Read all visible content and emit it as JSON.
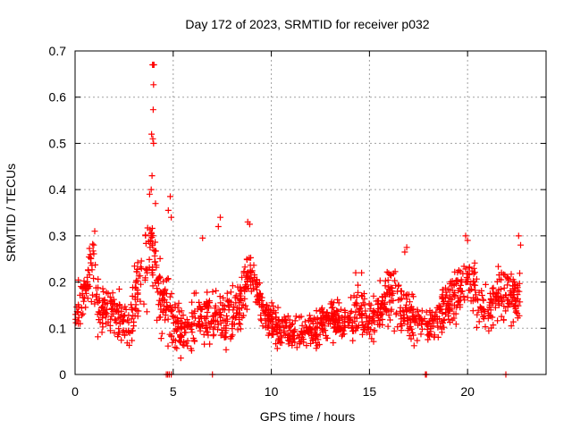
{
  "chart_data": {
    "type": "scatter",
    "title": "Day 172 of 2023, SRMTID for receiver p032",
    "xlabel": "GPS time / hours",
    "ylabel": "SRMTID / TECUs",
    "xlim": [
      0,
      24
    ],
    "ylim": [
      0,
      0.7
    ],
    "xticks": [
      0,
      5,
      10,
      15,
      20
    ],
    "yticks": [
      0,
      0.1,
      0.2,
      0.3,
      0.4,
      0.5,
      0.6,
      0.7
    ],
    "xtick_labels": [
      "0",
      "5",
      "10",
      "15",
      "20"
    ],
    "ytick_labels": [
      "0",
      "0.1",
      "0.2",
      "0.3",
      "0.4",
      "0.5",
      "0.6",
      "0.7"
    ],
    "grid": true,
    "marker": "+",
    "color": "#ff0000",
    "series": [
      {
        "name": "SRMTID",
        "profile": [
          [
            0.0,
            0.13,
            0.05
          ],
          [
            0.5,
            0.17,
            0.06
          ],
          [
            0.9,
            0.22,
            0.07
          ],
          [
            1.2,
            0.14,
            0.05
          ],
          [
            1.8,
            0.15,
            0.05
          ],
          [
            2.3,
            0.12,
            0.05
          ],
          [
            2.7,
            0.09,
            0.04
          ],
          [
            3.1,
            0.18,
            0.07
          ],
          [
            3.5,
            0.22,
            0.08
          ],
          [
            3.8,
            0.3,
            0.1
          ],
          [
            4.2,
            0.2,
            0.08
          ],
          [
            4.7,
            0.15,
            0.07
          ],
          [
            5.2,
            0.1,
            0.05
          ],
          [
            5.7,
            0.09,
            0.05
          ],
          [
            6.3,
            0.12,
            0.06
          ],
          [
            6.9,
            0.14,
            0.06
          ],
          [
            7.4,
            0.13,
            0.06
          ],
          [
            8.0,
            0.12,
            0.06
          ],
          [
            8.5,
            0.16,
            0.06
          ],
          [
            8.9,
            0.24,
            0.05
          ],
          [
            9.3,
            0.17,
            0.05
          ],
          [
            9.8,
            0.12,
            0.04
          ],
          [
            10.5,
            0.1,
            0.04
          ],
          [
            11.2,
            0.09,
            0.03
          ],
          [
            11.8,
            0.09,
            0.03
          ],
          [
            12.5,
            0.11,
            0.04
          ],
          [
            13.2,
            0.12,
            0.04
          ],
          [
            13.8,
            0.1,
            0.04
          ],
          [
            14.4,
            0.14,
            0.06
          ],
          [
            15.0,
            0.11,
            0.04
          ],
          [
            15.6,
            0.15,
            0.06
          ],
          [
            16.2,
            0.18,
            0.07
          ],
          [
            16.8,
            0.13,
            0.05
          ],
          [
            17.3,
            0.12,
            0.05
          ],
          [
            17.9,
            0.11,
            0.04
          ],
          [
            18.4,
            0.12,
            0.05
          ],
          [
            19.0,
            0.15,
            0.05
          ],
          [
            19.6,
            0.18,
            0.06
          ],
          [
            20.0,
            0.2,
            0.06
          ],
          [
            20.5,
            0.16,
            0.05
          ],
          [
            21.0,
            0.13,
            0.05
          ],
          [
            21.5,
            0.17,
            0.06
          ],
          [
            22.0,
            0.18,
            0.06
          ],
          [
            22.5,
            0.17,
            0.06
          ],
          [
            22.7,
            0.2,
            0.07
          ]
        ],
        "spikes": [
          [
            3.99,
            0.67
          ],
          [
            3.95,
            0.67
          ],
          [
            4.02,
            0.67
          ],
          [
            4.0,
            0.627
          ],
          [
            3.98,
            0.573
          ],
          [
            3.9,
            0.52
          ],
          [
            3.96,
            0.51
          ],
          [
            4.0,
            0.5
          ],
          [
            3.92,
            0.43
          ],
          [
            3.88,
            0.4
          ],
          [
            3.8,
            0.39
          ],
          [
            4.1,
            0.37
          ],
          [
            4.85,
            0.385
          ],
          [
            4.75,
            0.355
          ],
          [
            4.9,
            0.34
          ],
          [
            7.4,
            0.34
          ],
          [
            7.3,
            0.32
          ],
          [
            6.5,
            0.295
          ],
          [
            8.8,
            0.33
          ],
          [
            8.9,
            0.325
          ],
          [
            1.0,
            0.31
          ],
          [
            0.95,
            0.28
          ],
          [
            14.3,
            0.22
          ],
          [
            14.6,
            0.22
          ],
          [
            16.9,
            0.275
          ],
          [
            16.8,
            0.265
          ],
          [
            19.9,
            0.3
          ],
          [
            20.0,
            0.29
          ],
          [
            22.6,
            0.3
          ],
          [
            22.7,
            0.28
          ]
        ],
        "zero_points": [
          4.65,
          4.72,
          4.8,
          4.9,
          7.0,
          17.85,
          17.9,
          21.95
        ]
      }
    ]
  }
}
